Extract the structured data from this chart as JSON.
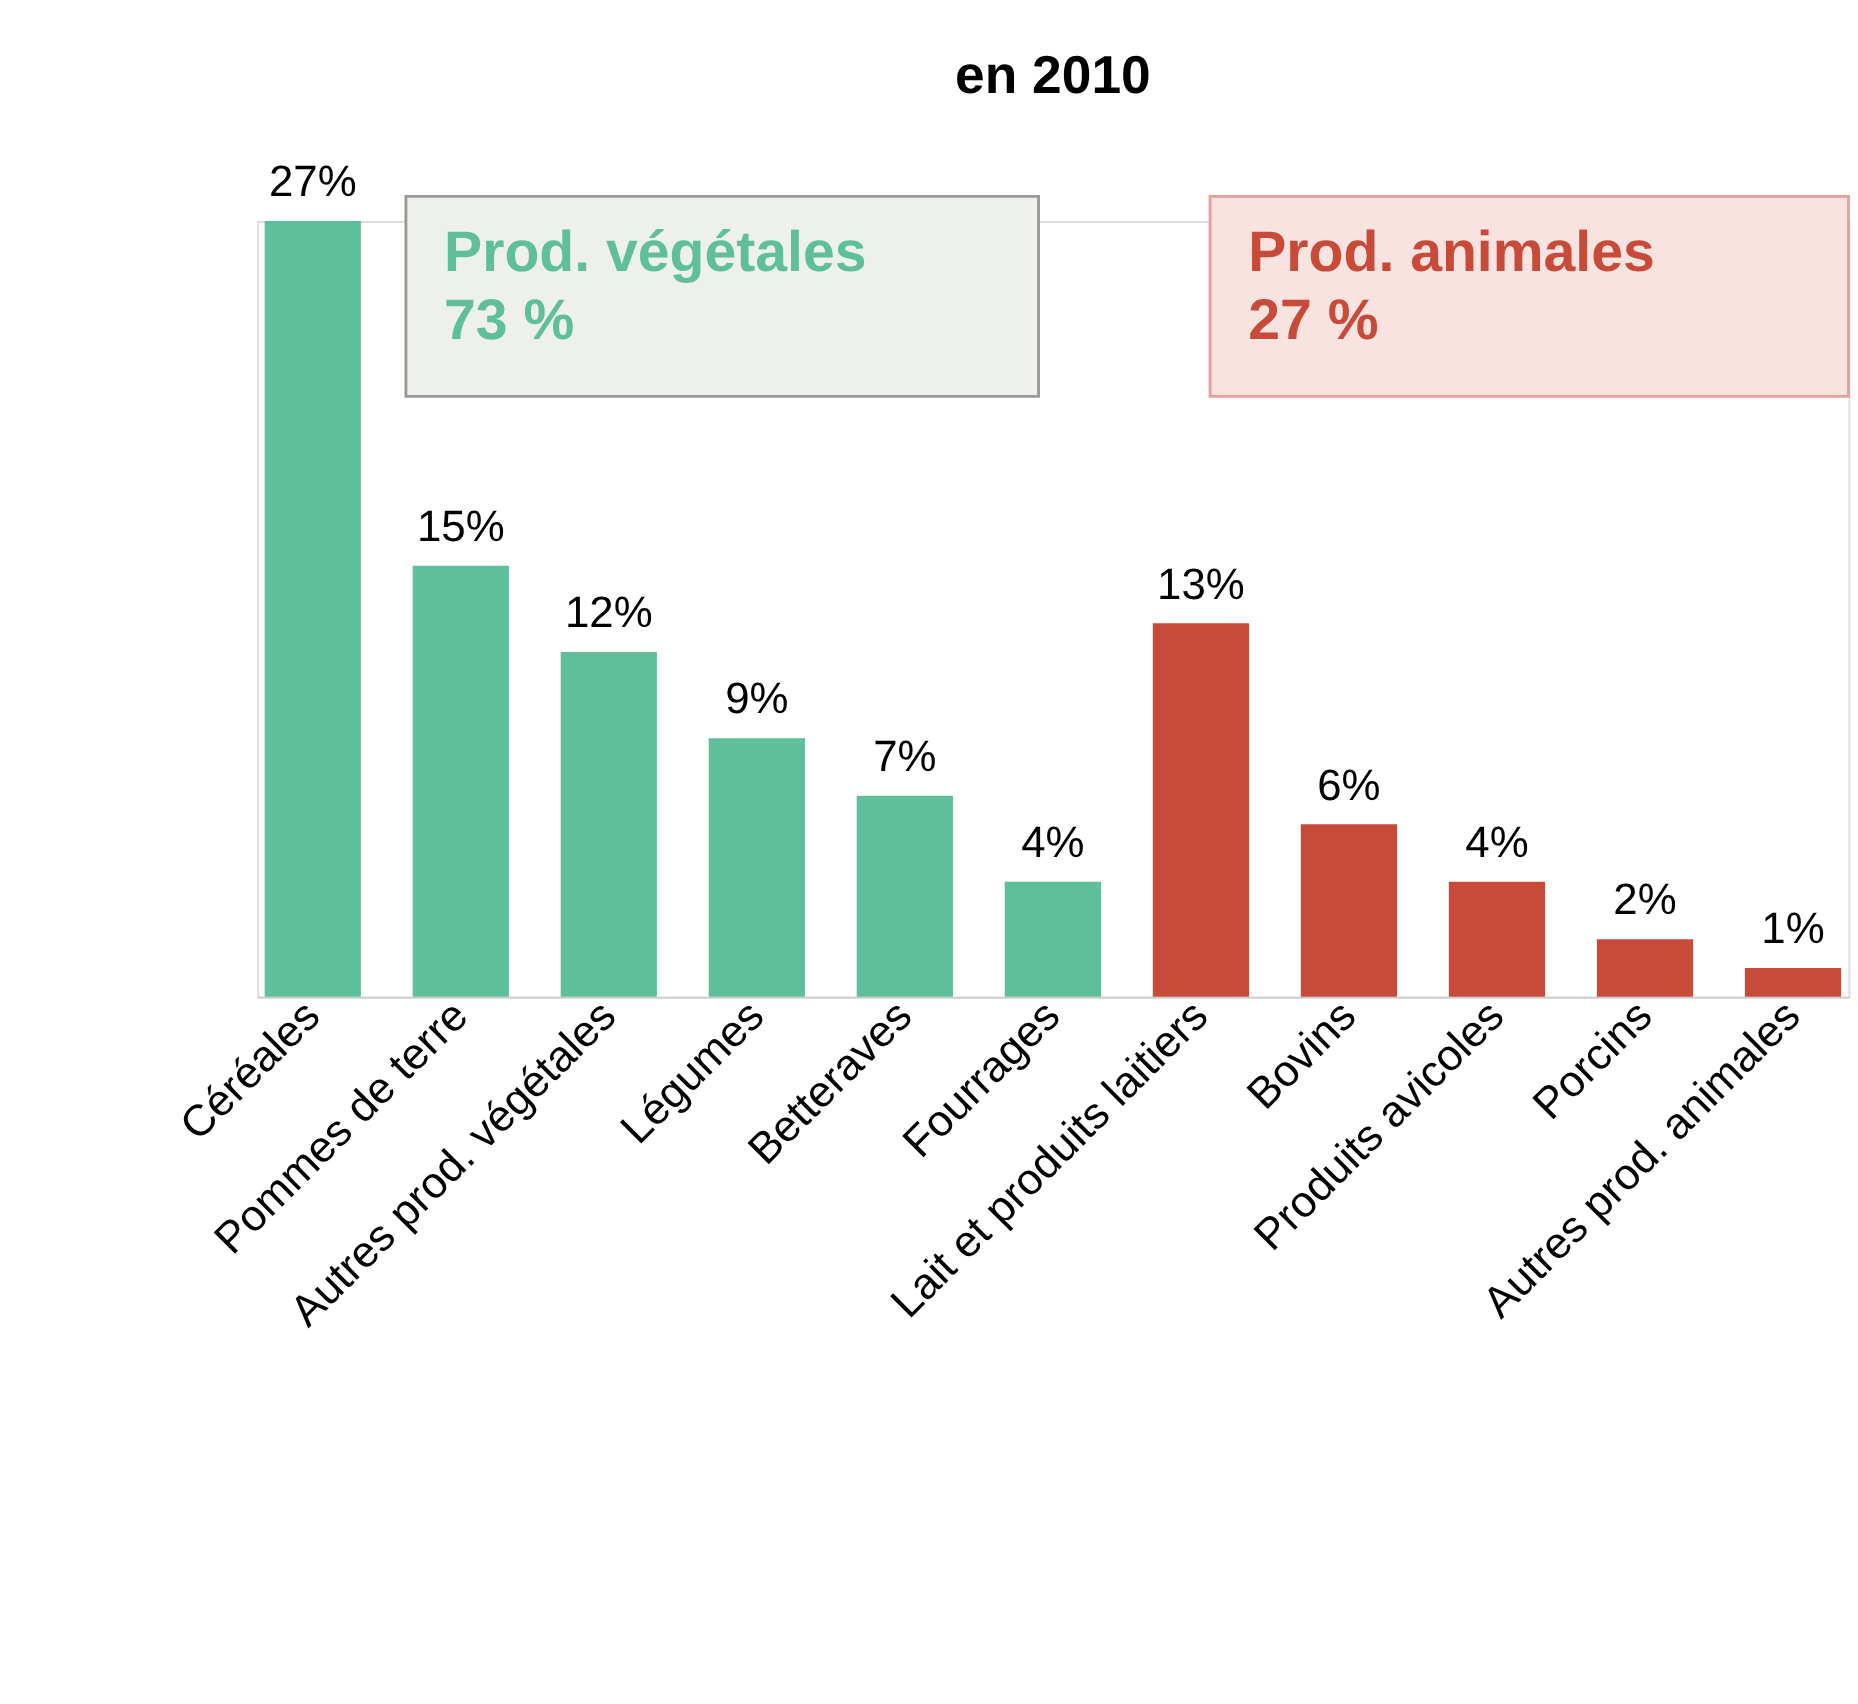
{
  "chart_data": {
    "type": "bar",
    "title": "en 2010",
    "categories": [
      "Céréales",
      "Pommes de terre",
      "Autres prod. végétales",
      "Légumes",
      "Betteraves",
      "Fourrages",
      "Lait et produits laitiers",
      "Bovins",
      "Produits avicoles",
      "Porcins",
      "Autres prod. animales"
    ],
    "values": [
      27,
      15,
      12,
      9,
      7,
      4,
      13,
      6,
      4,
      2,
      1
    ],
    "value_labels": [
      "27%",
      "15%",
      "12%",
      "9%",
      "7%",
      "4%",
      "13%",
      "6%",
      "4%",
      "2%",
      "1%"
    ],
    "colors": [
      "#5fbf9b",
      "#5fbf9b",
      "#5fbf9b",
      "#5fbf9b",
      "#5fbf9b",
      "#5fbf9b",
      "#c84b3a",
      "#c84b3a",
      "#c84b3a",
      "#c84b3a",
      "#c84b3a"
    ],
    "annotations": [
      "Prod. végétales\n 73 %",
      "Prod. animales\n 27 %"
    ],
    "grid": false
  }
}
